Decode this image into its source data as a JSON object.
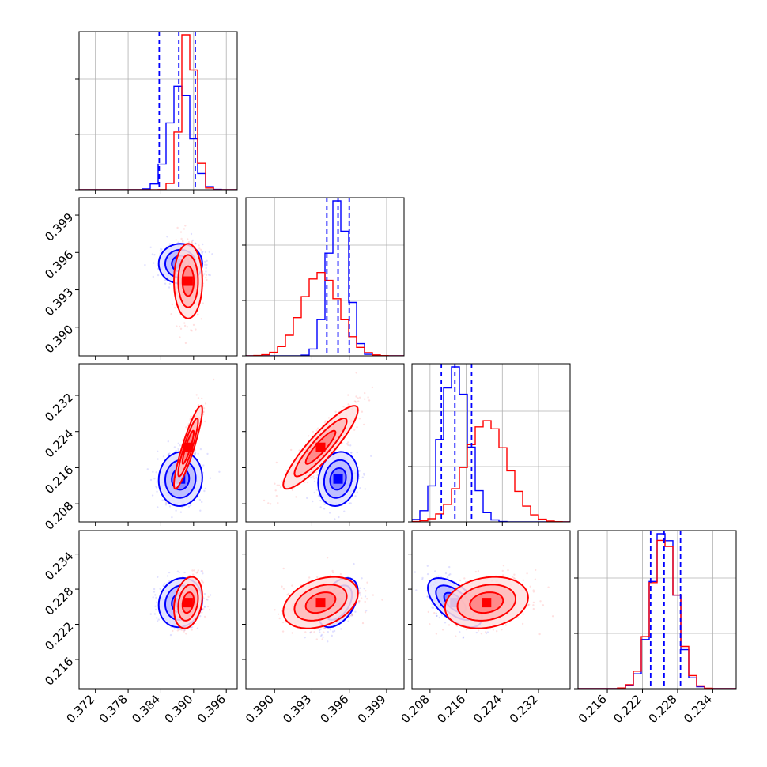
{
  "chart_data": {
    "type": "corner",
    "grid": true,
    "colors": {
      "sample_a": "#0000ff",
      "sample_b": "#ff0000"
    },
    "parameters": [
      {
        "id": "p0",
        "xlim": [
          0.369,
          0.398
        ],
        "ticks": [
          0.372,
          0.378,
          0.384,
          0.39,
          0.396
        ],
        "tick_labels": [
          "0.372",
          "0.378",
          "0.384",
          "0.390",
          "0.396"
        ]
      },
      {
        "id": "p1",
        "xlim": [
          0.3877,
          0.4004
        ],
        "ticks": [
          0.39,
          0.393,
          0.396,
          0.399
        ],
        "tick_labels": [
          "0.390",
          "0.393",
          "0.396",
          "0.399"
        ]
      },
      {
        "id": "p2",
        "xlim": [
          0.204,
          0.239
        ],
        "ticks": [
          0.208,
          0.216,
          0.224,
          0.232
        ],
        "tick_labels": [
          "0.208",
          "0.216",
          "0.224",
          "0.232"
        ]
      },
      {
        "id": "p3",
        "xlim": [
          0.211,
          0.238
        ],
        "ticks": [
          0.216,
          0.222,
          0.228,
          0.234
        ],
        "tick_labels": [
          "0.216",
          "0.222",
          "0.228",
          "0.234"
        ]
      }
    ],
    "series": [
      {
        "key": "sample_a",
        "color": "#0000ff",
        "mean": [
          0.3876,
          0.3951,
          0.2135,
          0.2257
        ],
        "sd": [
          0.002,
          0.0008,
          0.003,
          0.0021
        ],
        "corr": [
          [
            0,
            0.45
          ],
          [
            0,
            0.05
          ],
          [
            0.05,
            0.15
          ],
          [
            0.1,
            0.45,
            -0.6
          ]
        ],
        "quantiles": [
          [
            0.3837,
            0.3873,
            0.3903
          ],
          [
            0.3942,
            0.3951,
            0.396
          ],
          [
            0.2105,
            0.2135,
            0.2172
          ],
          [
            0.2234,
            0.2257,
            0.2285
          ]
        ]
      },
      {
        "key": "sample_b",
        "color": "#ff0000",
        "mean": [
          0.389,
          0.3937,
          0.2205,
          0.2257
        ],
        "sd": [
          0.0013,
          0.0015,
          0.0046,
          0.0022
        ],
        "corr": [
          [
            0,
            0.93
          ],
          [
            0,
            0.85
          ],
          [
            0.9,
            0.9
          ],
          [
            0.25,
            0.35,
            0.2
          ]
        ]
      }
    ]
  }
}
